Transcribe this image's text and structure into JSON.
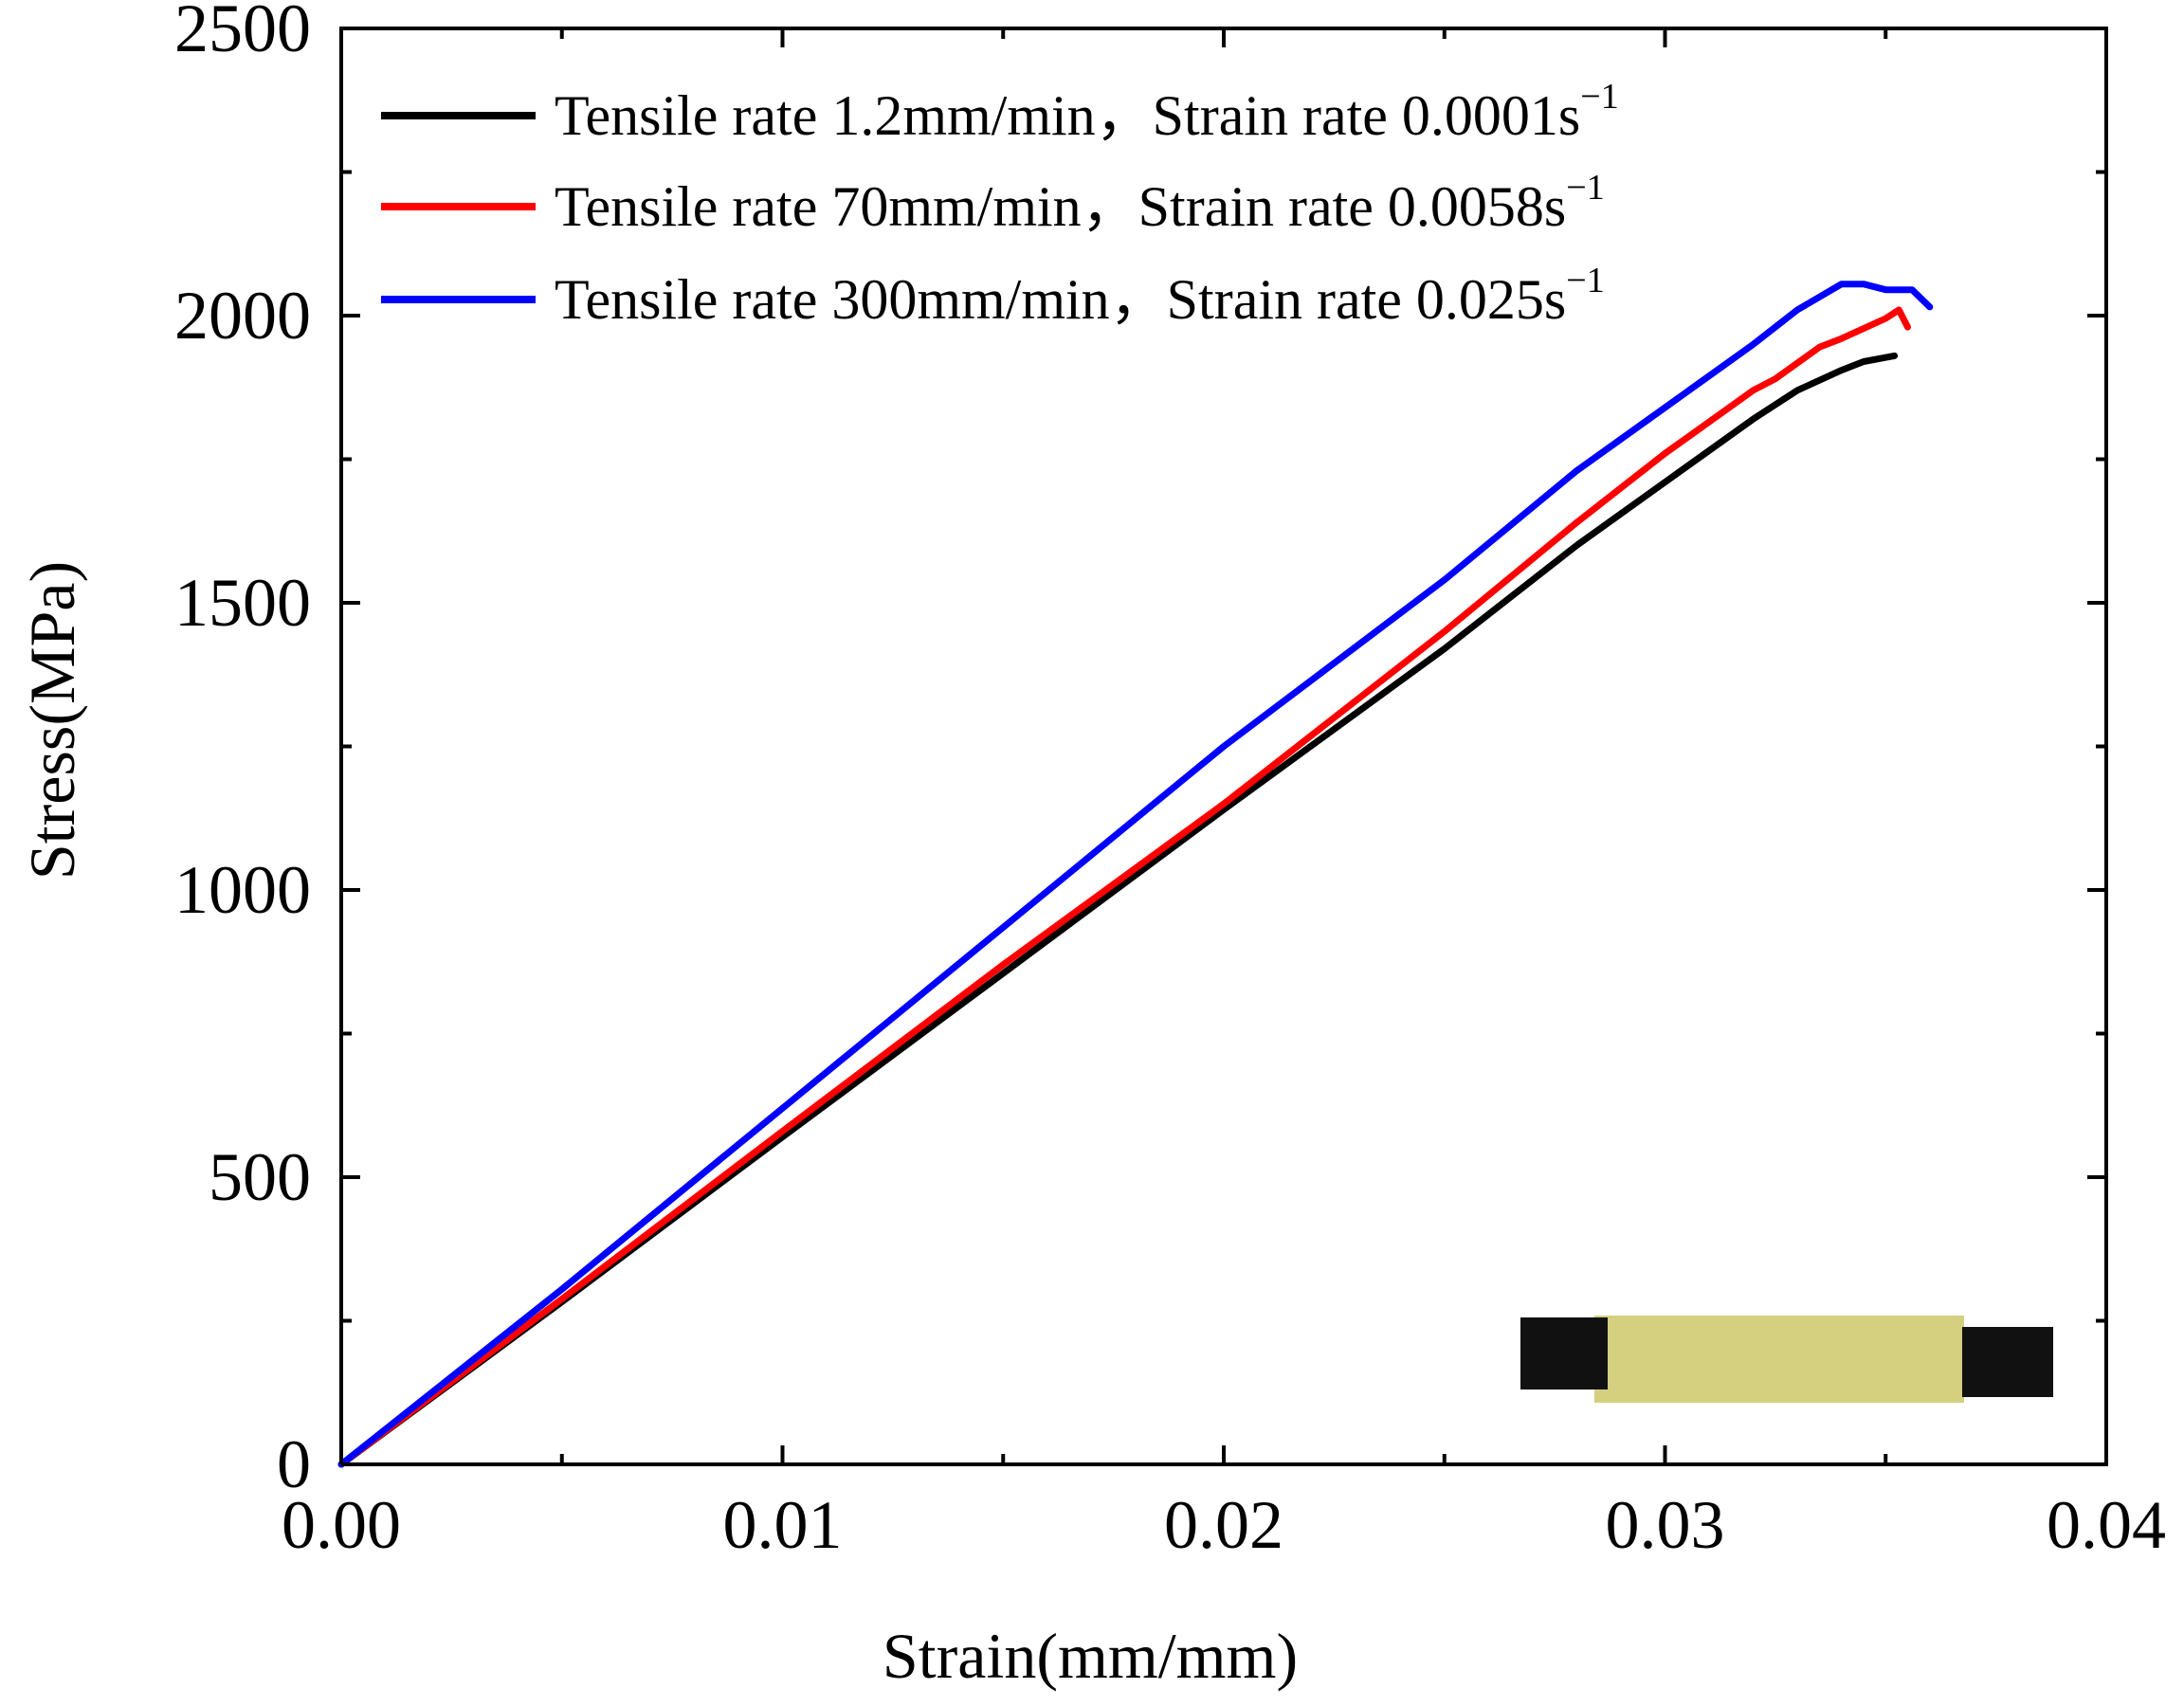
{
  "chart_data": {
    "type": "line",
    "title": "",
    "xlabel": "Strain(mm/mm)",
    "ylabel": "Stress(MPa)",
    "xlim": [
      0.0,
      0.04
    ],
    "ylim": [
      0,
      2500
    ],
    "x_ticks": [
      "0.00",
      "0.01",
      "0.02",
      "0.03",
      "0.04"
    ],
    "y_ticks": [
      "0",
      "500",
      "1000",
      "1500",
      "2000",
      "2500"
    ],
    "grid": false,
    "legend_position": "top-left",
    "series": [
      {
        "name": "Tensile rate 1.2mm/min，Strain rate 0.0001s",
        "superscript": "−1",
        "color": "#000000",
        "points": [
          [
            0,
            0
          ],
          [
            0.005,
            283
          ],
          [
            0.01,
            570
          ],
          [
            0.015,
            855
          ],
          [
            0.02,
            1140
          ],
          [
            0.025,
            1420
          ],
          [
            0.028,
            1600
          ],
          [
            0.03,
            1710
          ],
          [
            0.032,
            1820
          ],
          [
            0.033,
            1870
          ],
          [
            0.034,
            1905
          ],
          [
            0.0345,
            1920
          ],
          [
            0.0352,
            1930
          ]
        ]
      },
      {
        "name": "Tensile rate 70mm/min，Strain rate 0.0058s",
        "superscript": "−1",
        "color": "#ff0000",
        "points": [
          [
            0,
            0
          ],
          [
            0.005,
            288
          ],
          [
            0.01,
            580
          ],
          [
            0.015,
            870
          ],
          [
            0.02,
            1150
          ],
          [
            0.025,
            1450
          ],
          [
            0.028,
            1640
          ],
          [
            0.03,
            1760
          ],
          [
            0.032,
            1870
          ],
          [
            0.0325,
            1890
          ],
          [
            0.0335,
            1945
          ],
          [
            0.034,
            1960
          ],
          [
            0.035,
            1995
          ],
          [
            0.0353,
            2010
          ],
          [
            0.0355,
            1980
          ]
        ]
      },
      {
        "name": "Tensile rate 300mm/min，Strain rate 0.025s",
        "superscript": "−1",
        "color": "#0000ff",
        "points": [
          [
            0,
            0
          ],
          [
            0.005,
            305
          ],
          [
            0.01,
            620
          ],
          [
            0.015,
            935
          ],
          [
            0.02,
            1250
          ],
          [
            0.025,
            1540
          ],
          [
            0.028,
            1730
          ],
          [
            0.03,
            1840
          ],
          [
            0.032,
            1950
          ],
          [
            0.033,
            2010
          ],
          [
            0.034,
            2055
          ],
          [
            0.0345,
            2055
          ],
          [
            0.035,
            2045
          ],
          [
            0.0356,
            2045
          ],
          [
            0.036,
            2015
          ]
        ]
      }
    ]
  },
  "inset_image": {
    "description_label": "specimen-photo",
    "tab_color": "#111111",
    "fabric_color": "#d4d080"
  }
}
